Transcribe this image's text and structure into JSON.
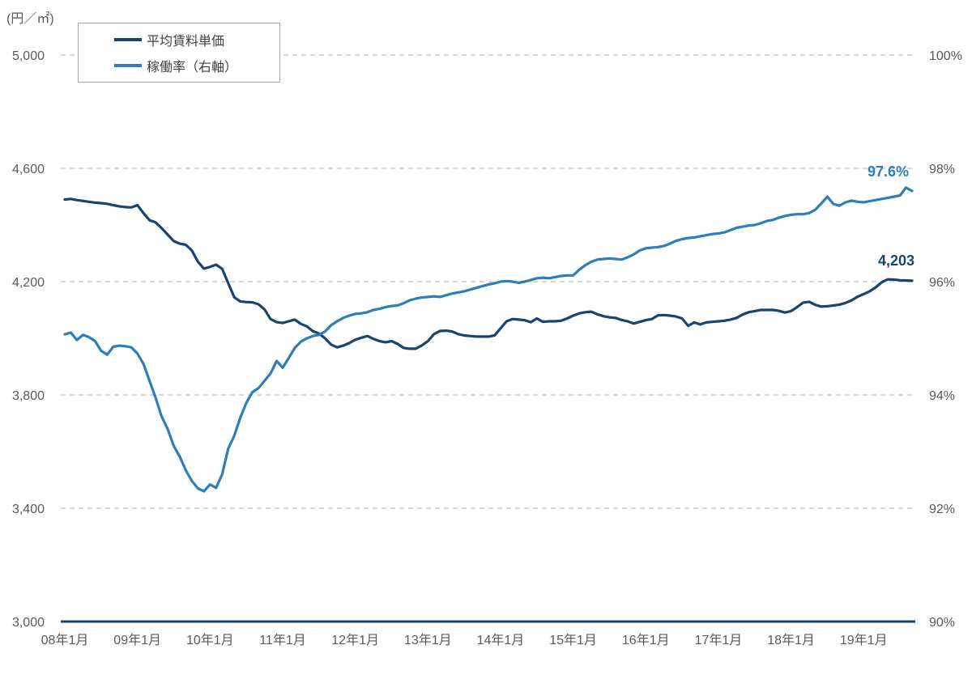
{
  "unit_label": "(円／㎡)",
  "colors": {
    "rent_line": "#17456E",
    "occupancy_line": "#2E7EB8",
    "grid": "#BFBFBF",
    "axis_text": "#595959",
    "legend_text": "#404040",
    "baseline": "#17456E"
  },
  "legend": {
    "items": [
      {
        "label": "平均賃料単価",
        "color": "#17456E"
      },
      {
        "label": "稼働率（右軸）",
        "color": "#2E7EB8"
      }
    ]
  },
  "annotations": {
    "occupancy_last_value": "97.6%",
    "rent_last_value": "4,203"
  },
  "chart_data": {
    "type": "line",
    "title": "",
    "x_unit": "month",
    "x_start": "2008-01",
    "x_end": "2019-09",
    "x_tick_labels": [
      "08年1月",
      "09年1月",
      "10年1月",
      "11年1月",
      "12年1月",
      "13年1月",
      "14年1月",
      "15年1月",
      "16年1月",
      "17年1月",
      "18年1月",
      "19年1月"
    ],
    "left_axis": {
      "label": "(円／㎡)",
      "range": [
        3000,
        5000
      ],
      "tick_values": [
        5000,
        4600,
        4200,
        3800,
        3400,
        3000
      ],
      "tick_labels": [
        "5,000",
        "4,600",
        "4,200",
        "3,800",
        "3,400",
        "3,000"
      ]
    },
    "right_axis": {
      "label": "稼働率",
      "range": [
        90,
        100
      ],
      "tick_values": [
        100,
        98,
        96,
        94,
        92,
        90
      ],
      "tick_labels": [
        "100%",
        "98%",
        "96%",
        "94%",
        "92%",
        "90%"
      ]
    },
    "grid": "horizontal-dashed",
    "legend_position": "top-left",
    "series": [
      {
        "name": "平均賃料単価",
        "axis": "left",
        "color": "#17456E",
        "last_label": "4,203",
        "values": [
          4490,
          4492,
          4488,
          4485,
          4482,
          4479,
          4477,
          4475,
          4470,
          4466,
          4463,
          4462,
          4470,
          4442,
          4417,
          4409,
          4389,
          4366,
          4343,
          4334,
          4330,
          4310,
          4270,
          4246,
          4252,
          4260,
          4245,
          4195,
          4145,
          4130,
          4128,
          4127,
          4120,
          4102,
          4068,
          4057,
          4054,
          4060,
          4066,
          4051,
          4042,
          4025,
          4017,
          4000,
          3978,
          3968,
          3974,
          3983,
          3995,
          4002,
          4008,
          3998,
          3990,
          3986,
          3990,
          3980,
          3966,
          3963,
          3963,
          3975,
          3990,
          4015,
          4026,
          4027,
          4024,
          4015,
          4010,
          4008,
          4006,
          4006,
          4006,
          4010,
          4035,
          4060,
          4068,
          4066,
          4064,
          4057,
          4070,
          4058,
          4060,
          4060,
          4062,
          4070,
          4080,
          4088,
          4092,
          4094,
          4085,
          4078,
          4074,
          4072,
          4065,
          4060,
          4052,
          4058,
          4064,
          4068,
          4081,
          4082,
          4080,
          4077,
          4070,
          4044,
          4056,
          4049,
          4056,
          4058,
          4060,
          4062,
          4066,
          4072,
          4084,
          4092,
          4096,
          4100,
          4100,
          4100,
          4097,
          4091,
          4096,
          4110,
          4126,
          4129,
          4118,
          4112,
          4113,
          4116,
          4119,
          4125,
          4134,
          4147,
          4156,
          4166,
          4180,
          4198,
          4208,
          4207,
          4205,
          4204,
          4203
        ]
      },
      {
        "name": "稼働率（右軸）",
        "axis": "right",
        "color": "#2E7EB8",
        "last_label": "97.6%",
        "values": [
          95.07,
          95.1,
          94.97,
          95.06,
          95.02,
          94.95,
          94.78,
          94.71,
          94.85,
          94.87,
          94.86,
          94.84,
          94.73,
          94.55,
          94.25,
          93.95,
          93.62,
          93.4,
          93.1,
          92.91,
          92.67,
          92.48,
          92.35,
          92.3,
          92.42,
          92.36,
          92.6,
          93.05,
          93.28,
          93.6,
          93.86,
          94.05,
          94.12,
          94.25,
          94.38,
          94.6,
          94.48,
          94.65,
          94.83,
          94.94,
          95.0,
          95.04,
          95.06,
          95.12,
          95.23,
          95.3,
          95.36,
          95.4,
          95.43,
          95.44,
          95.46,
          95.5,
          95.52,
          95.55,
          95.57,
          95.58,
          95.62,
          95.67,
          95.7,
          95.72,
          95.73,
          95.74,
          95.73,
          95.76,
          95.79,
          95.81,
          95.83,
          95.86,
          95.89,
          95.92,
          95.95,
          95.97,
          96.0,
          96.01,
          96.0,
          95.98,
          96.0,
          96.03,
          96.06,
          96.07,
          96.06,
          96.08,
          96.1,
          96.11,
          96.11,
          96.21,
          96.29,
          96.35,
          96.39,
          96.4,
          96.41,
          96.4,
          96.39,
          96.43,
          96.48,
          96.55,
          96.59,
          96.6,
          96.61,
          96.63,
          96.67,
          96.72,
          96.75,
          96.77,
          96.78,
          96.8,
          96.82,
          96.84,
          96.85,
          96.87,
          96.91,
          96.95,
          96.97,
          96.99,
          97.0,
          97.03,
          97.07,
          97.09,
          97.13,
          97.16,
          97.18,
          97.19,
          97.19,
          97.21,
          97.27,
          97.38,
          97.5,
          97.37,
          97.34,
          97.4,
          97.43,
          97.41,
          97.4,
          97.42,
          97.44,
          97.46,
          97.48,
          97.5,
          97.52,
          97.66,
          97.6
        ]
      }
    ]
  }
}
